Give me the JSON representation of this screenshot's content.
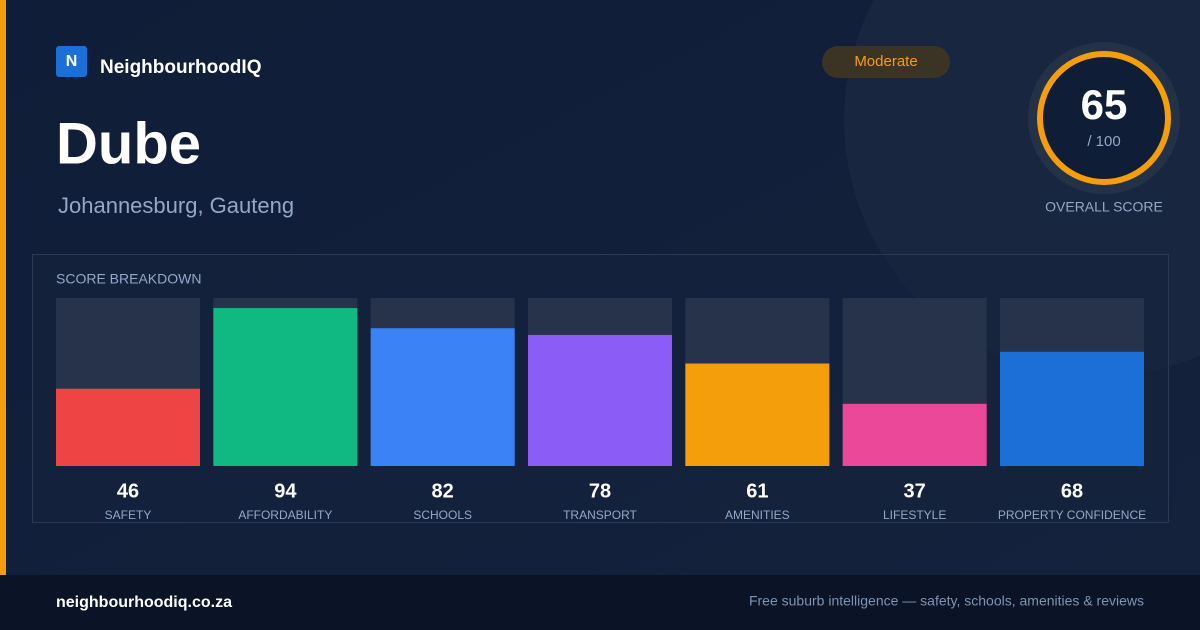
{
  "brand": {
    "logo": "N",
    "name": "NeighbourhoodIQ"
  },
  "title": "Dube",
  "location": "Johannesburg, Gauteng",
  "badge": "Moderate",
  "overall": {
    "score": 65,
    "max_label": "/ 100",
    "caption": "OVERALL SCORE"
  },
  "chart_data": {
    "type": "bar",
    "title": "SCORE BREAKDOWN",
    "categories": [
      "SAFETY",
      "AFFORDABILITY",
      "SCHOOLS",
      "TRANSPORT",
      "AMENITIES",
      "LIFESTYLE",
      "PROPERTY CONFIDENCE"
    ],
    "values": [
      46,
      94,
      82,
      78,
      61,
      37,
      68
    ],
    "colors": [
      "#ef4444",
      "#10b981",
      "#3b82f6",
      "#8b5cf6",
      "#f59e0b",
      "#ec4899",
      "#1d6fd8"
    ],
    "ylim": [
      0,
      100
    ]
  },
  "footer": {
    "site": "neighbourhoodiq.co.za",
    "tagline": "Free suburb intelligence — safety, schools, amenities & reviews"
  }
}
